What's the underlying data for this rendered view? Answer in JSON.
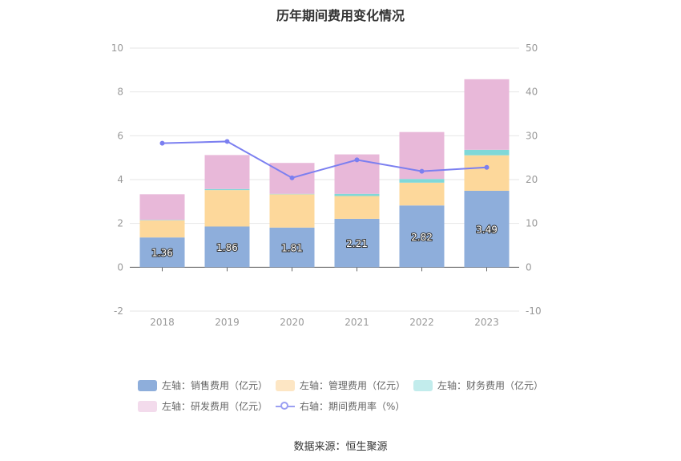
{
  "chart_data": {
    "type": "bar",
    "title": "历年期间费用变化情况",
    "categories": [
      "2018",
      "2019",
      "2020",
      "2021",
      "2022",
      "2023"
    ],
    "left_axis": {
      "ylim": [
        -2,
        10
      ],
      "ticks": [
        "-2",
        "0",
        "2",
        "4",
        "6",
        "8",
        "10"
      ]
    },
    "right_axis": {
      "ylim": [
        -10,
        50
      ],
      "ticks": [
        "-10",
        "0",
        "10",
        "20",
        "30",
        "40",
        "50"
      ]
    },
    "series": [
      {
        "name": "左轴：销售费用（亿元）",
        "type": "bar",
        "axis": "left",
        "color": "#8eaedb",
        "values": [
          1.36,
          1.86,
          1.81,
          2.21,
          2.82,
          3.49
        ],
        "labels": [
          "1.36",
          "1.86",
          "1.81",
          "2.21",
          "2.82",
          "3.49"
        ]
      },
      {
        "name": "左轴：管理费用（亿元）",
        "type": "bar",
        "axis": "left",
        "color": "#fdd89b",
        "values": [
          0.78,
          1.66,
          1.52,
          1.04,
          1.04,
          1.62
        ]
      },
      {
        "name": "左轴：财务费用（亿元）",
        "type": "bar",
        "axis": "left",
        "color": "#7fd8d8",
        "values": [
          0.02,
          0.05,
          0.02,
          0.1,
          0.17,
          0.25
        ]
      },
      {
        "name": "左轴：研发费用（亿元）",
        "type": "bar",
        "axis": "left",
        "color": "#e8b8d9",
        "values": [
          1.17,
          1.55,
          1.41,
          1.8,
          2.14,
          3.22
        ]
      },
      {
        "name": "右轴：期间费用率（%）",
        "type": "line",
        "axis": "right",
        "color": "#7b7ff0",
        "values": [
          28.3,
          28.7,
          20.4,
          24.5,
          21.9,
          22.8
        ]
      }
    ],
    "legend_colors": [
      "#8eaedb",
      "#fde6c4",
      "#c2ecec",
      "#f3dbec",
      "#9b9ff2"
    ],
    "grid": true,
    "legend_position": "bottom"
  },
  "source": "数据来源：恒生聚源"
}
